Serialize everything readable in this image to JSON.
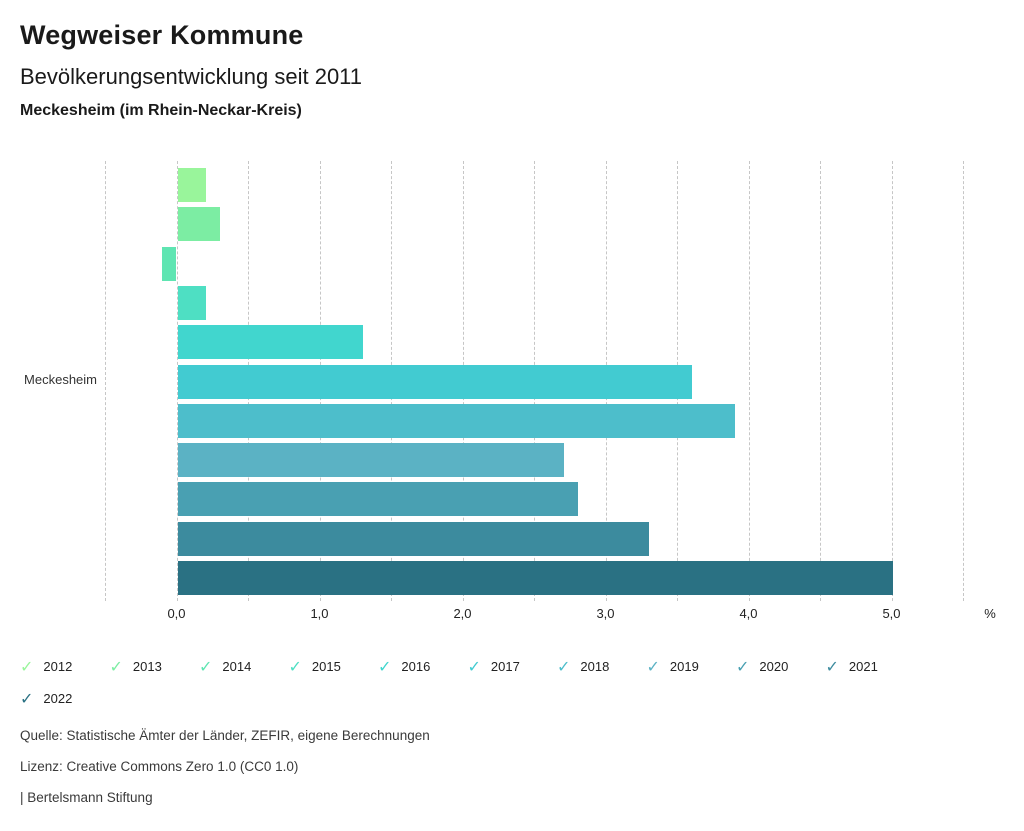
{
  "header": {
    "title": "Wegweiser Kommune",
    "subtitle": "Bevölkerungsentwicklung seit 2011",
    "location": "Meckesheim (im Rhein-Neckar-Kreis)"
  },
  "chart_data": {
    "type": "bar",
    "orientation": "horizontal",
    "title": "Bevölkerungsentwicklung seit 2011",
    "category": "Meckesheim",
    "unit": "%",
    "series": [
      {
        "name": "2012",
        "value": 0.2,
        "color": "#99F59B"
      },
      {
        "name": "2013",
        "value": 0.3,
        "color": "#7CEDA3"
      },
      {
        "name": "2014",
        "value": -0.1,
        "color": "#5FE5B2"
      },
      {
        "name": "2015",
        "value": 0.2,
        "color": "#4EDFC3"
      },
      {
        "name": "2016",
        "value": 1.3,
        "color": "#41D6CE"
      },
      {
        "name": "2017",
        "value": 3.6,
        "color": "#42CBD1"
      },
      {
        "name": "2018",
        "value": 3.9,
        "color": "#4DBECB"
      },
      {
        "name": "2019",
        "value": 2.7,
        "color": "#5BB2C4"
      },
      {
        "name": "2020",
        "value": 2.8,
        "color": "#49A0B2"
      },
      {
        "name": "2021",
        "value": 3.3,
        "color": "#3C8B9E"
      },
      {
        "name": "2022",
        "value": 5.0,
        "color": "#2A7183"
      }
    ],
    "x_ticks": [
      "0,0",
      "1,0",
      "2,0",
      "3,0",
      "4,0",
      "5,0"
    ],
    "xlim": [
      -0.5,
      5.5
    ],
    "grid_step": 0.5,
    "grid": true,
    "legend_position": "bottom",
    "legend_rows": [
      [
        "2012",
        "2013",
        "2014",
        "2015",
        "2016",
        "2017",
        "2018",
        "2019",
        "2020",
        "2021"
      ],
      [
        "2022"
      ]
    ]
  },
  "footer": {
    "source": "Quelle: Statistische Ämter der Länder, ZEFIR, eigene Berechnungen",
    "license": "Lizenz: Creative Commons Zero 1.0 (CC0 1.0)",
    "attribution": "| Bertelsmann Stiftung"
  }
}
